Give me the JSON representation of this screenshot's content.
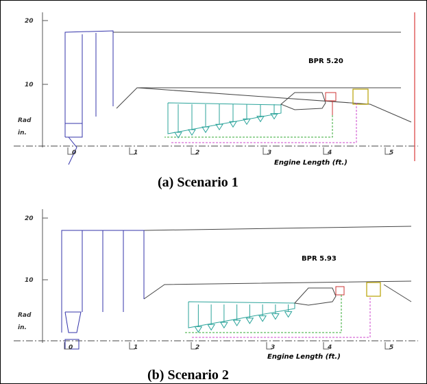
{
  "panels": [
    {
      "y_ticks": [
        "20",
        "10"
      ],
      "y_label": [
        "Rad",
        "in."
      ],
      "bpr": "BPR  5.20",
      "x_ticks": [
        "0",
        "1",
        "2",
        "3",
        "4",
        "5"
      ],
      "x_label": "Engine Length (ft.)",
      "caption": "(a)  Scenario 1"
    },
    {
      "y_ticks": [
        "20",
        "10"
      ],
      "y_label": [
        "Rad",
        "in."
      ],
      "bpr": "BPR 5.93",
      "x_ticks": [
        "0",
        "1",
        "2",
        "3",
        "4",
        "5"
      ],
      "x_label": "Engine Length (ft.)",
      "caption": "(b) Scenario 2"
    }
  ]
}
